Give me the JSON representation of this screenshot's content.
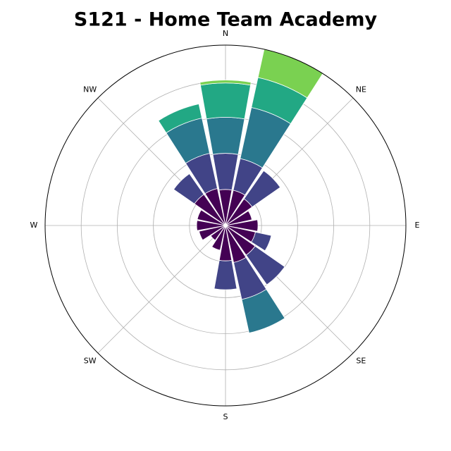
{
  "chart_data": {
    "type": "windrose",
    "title": "S121 - Home Team Academy",
    "x": [
      0,
      22.5,
      45,
      67.5,
      90,
      112.5,
      135,
      157.5,
      180,
      202.5,
      225,
      247.5,
      270,
      292.5,
      315,
      337.5
    ],
    "series": [
      {
        "color": "#440154",
        "values": [
          1.0,
          1.0,
          0.9,
          0.75,
          0.9,
          0.85,
          1.0,
          1.05,
          0.98,
          0.7,
          0.5,
          0.75,
          0.8,
          0.8,
          1.05,
          1.05
        ]
      },
      {
        "color": "#414487",
        "values": [
          1.0,
          0.9,
          0.95,
          0,
          0,
          0.45,
          1.0,
          1.05,
          0.8,
          0,
          0,
          0,
          0,
          0,
          0.7,
          1.0
        ]
      },
      {
        "color": "#2a788e",
        "values": [
          1.0,
          1.45,
          0,
          0,
          0,
          0,
          0,
          0.95,
          0,
          0,
          0,
          0,
          0,
          0,
          0,
          1.0
        ]
      },
      {
        "color": "#22a884",
        "values": [
          0.95,
          0.85,
          0,
          0,
          0,
          0,
          0,
          0,
          0,
          0,
          0,
          0,
          0,
          0,
          0,
          0.4
        ]
      },
      {
        "color": "#7ad151",
        "values": [
          0.08,
          0.8,
          0,
          0,
          0,
          0,
          0,
          0,
          0,
          0,
          0,
          0,
          0,
          0,
          0,
          0
        ]
      }
    ],
    "ylim": [
      0,
      5
    ],
    "yticks": [
      1,
      2,
      3,
      4
    ],
    "xticks": [
      {
        "value": 0,
        "label": "N"
      },
      {
        "value": 45,
        "label": "NE"
      },
      {
        "value": 90,
        "label": "E"
      },
      {
        "value": 135,
        "label": "SE"
      },
      {
        "value": 180,
        "label": "S"
      },
      {
        "value": 225,
        "label": "SW"
      },
      {
        "value": 270,
        "label": "W"
      },
      {
        "value": 315,
        "label": "NW"
      }
    ],
    "grid": true
  }
}
